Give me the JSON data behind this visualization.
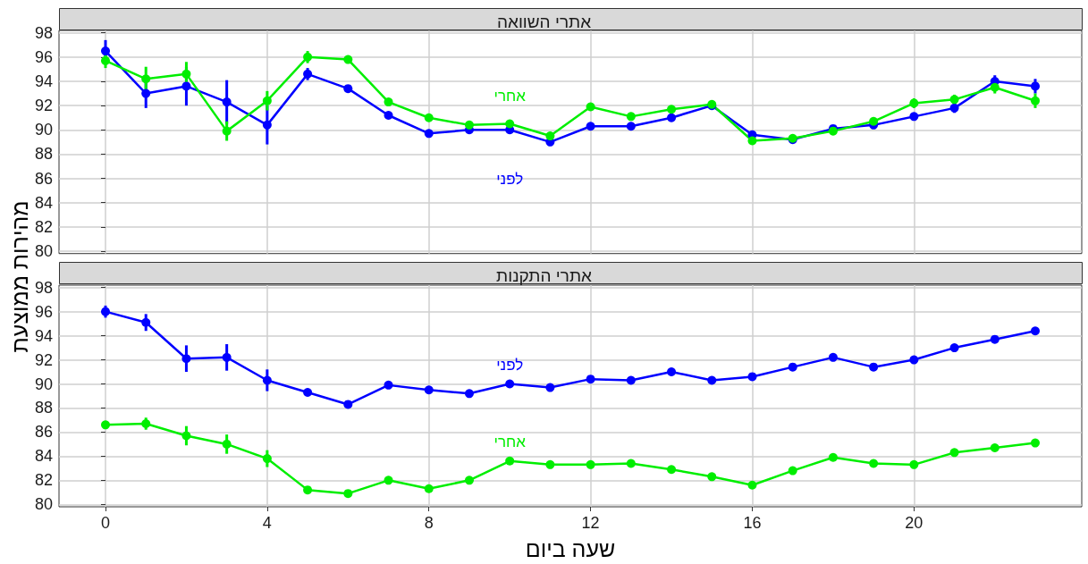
{
  "chart_data": [
    {
      "type": "line",
      "title": "אתרי השוואה",
      "ylabel": "מהירות ממוצעת",
      "x": [
        0,
        1,
        2,
        3,
        4,
        5,
        6,
        7,
        8,
        9,
        10,
        11,
        12,
        13,
        14,
        15,
        16,
        17,
        18,
        19,
        20,
        21,
        22,
        23
      ],
      "xlim": [
        -1.15,
        24.15
      ],
      "xticks": [
        0,
        4,
        8,
        12,
        16,
        20
      ],
      "ylim": [
        79.8,
        98.2
      ],
      "yticks": [
        80,
        82,
        84,
        86,
        88,
        90,
        92,
        94,
        96,
        98
      ],
      "grid": true,
      "marker": "circle",
      "line_style": "solid",
      "tick_labels": "y",
      "series": [
        {
          "name": "לפני",
          "color": "#0000ff",
          "values": [
            96.5,
            93.0,
            93.6,
            92.3,
            90.4,
            94.6,
            93.4,
            91.2,
            89.7,
            90.0,
            90.0,
            89.0,
            90.3,
            90.3,
            91.0,
            92.0,
            89.6,
            89.2,
            90.1,
            90.4,
            91.1,
            91.8,
            94.0,
            93.6
          ],
          "errors": [
            0.9,
            1.2,
            1.6,
            1.8,
            1.6,
            0.5,
            null,
            null,
            null,
            null,
            null,
            null,
            null,
            null,
            null,
            null,
            null,
            null,
            null,
            null,
            null,
            0.4,
            0.5,
            0.6
          ]
        },
        {
          "name": "אחרי",
          "color": "#00ee00",
          "values": [
            95.7,
            94.2,
            94.6,
            89.9,
            92.4,
            96.0,
            95.8,
            92.3,
            91.0,
            90.4,
            90.5,
            89.5,
            91.9,
            91.1,
            91.7,
            92.1,
            89.1,
            89.3,
            89.9,
            90.7,
            92.2,
            92.5,
            93.5,
            92.4
          ],
          "errors": [
            0.6,
            1.0,
            1.0,
            0.8,
            0.8,
            0.5,
            null,
            null,
            null,
            null,
            null,
            null,
            null,
            null,
            null,
            null,
            null,
            null,
            null,
            null,
            0.4,
            0.4,
            0.5,
            0.6
          ]
        }
      ]
    },
    {
      "type": "line",
      "title": "אתרי התקנות",
      "xlabel": "שעה ביום",
      "x": [
        0,
        1,
        2,
        3,
        4,
        5,
        6,
        7,
        8,
        9,
        10,
        11,
        12,
        13,
        14,
        15,
        16,
        17,
        18,
        19,
        20,
        21,
        22,
        23
      ],
      "xlim": [
        -1.15,
        24.15
      ],
      "xticks": [
        0,
        4,
        8,
        12,
        16,
        20
      ],
      "ylim": [
        79.8,
        98.2
      ],
      "yticks": [
        80,
        82,
        84,
        86,
        88,
        90,
        92,
        94,
        96,
        98
      ],
      "grid": true,
      "marker": "circle",
      "line_style": "solid",
      "series": [
        {
          "name": "לפני",
          "color": "#0000ff",
          "values": [
            96.0,
            95.1,
            92.1,
            92.2,
            90.3,
            89.3,
            88.3,
            89.9,
            89.5,
            89.2,
            90.0,
            89.7,
            90.4,
            90.3,
            91.0,
            90.3,
            90.6,
            91.4,
            92.2,
            91.4,
            92.0,
            93.0,
            93.7,
            94.4
          ],
          "errors": [
            0.5,
            0.7,
            1.1,
            1.1,
            0.9,
            null,
            null,
            null,
            null,
            null,
            null,
            null,
            null,
            null,
            null,
            null,
            null,
            null,
            null,
            null,
            null,
            null,
            null,
            0.3
          ]
        },
        {
          "name": "אחרי",
          "color": "#00ee00",
          "values": [
            86.6,
            86.7,
            85.7,
            85.0,
            83.8,
            81.2,
            80.9,
            82.0,
            81.3,
            82.0,
            83.6,
            83.3,
            83.3,
            83.4,
            82.9,
            82.3,
            81.6,
            82.8,
            83.9,
            83.4,
            83.3,
            84.3,
            84.7,
            85.1
          ],
          "errors": [
            0.3,
            0.5,
            0.8,
            0.8,
            0.7,
            null,
            null,
            null,
            null,
            null,
            null,
            null,
            null,
            null,
            null,
            null,
            null,
            null,
            null,
            null,
            null,
            null,
            null,
            null
          ]
        }
      ]
    }
  ]
}
